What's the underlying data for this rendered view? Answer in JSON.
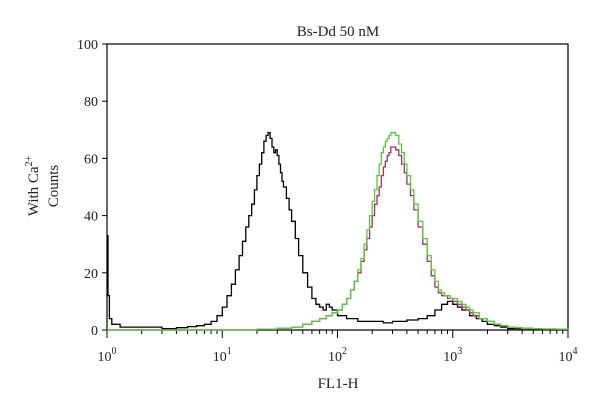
{
  "chart_data": {
    "type": "line",
    "title": "Bs-Dd 50 nM",
    "xlabel": "FL1-H",
    "ylabel_line1": "With Ca",
    "ylabel_sup": "2+",
    "ylabel_line2": "Counts",
    "x_scale": "log",
    "xlim": [
      1,
      10000
    ],
    "ylim": [
      0,
      100
    ],
    "y_ticks": [
      "0",
      "20",
      "40",
      "60",
      "80",
      "100"
    ],
    "x_ticks": [
      {
        "base": "10",
        "exp": "0",
        "value": 1
      },
      {
        "base": "10",
        "exp": "1",
        "value": 10
      },
      {
        "base": "10",
        "exp": "2",
        "value": 100
      },
      {
        "base": "10",
        "exp": "3",
        "value": 1000
      },
      {
        "base": "10",
        "exp": "4",
        "value": 10000
      }
    ],
    "grid": false,
    "series": [
      {
        "color": "#000000",
        "x": [
          1,
          1.02,
          1.05,
          1.1,
          1.3,
          2,
          3,
          4,
          5,
          6,
          7,
          8,
          9,
          10,
          11,
          12,
          13,
          14,
          15,
          16,
          17,
          18,
          19,
          20,
          21,
          22,
          23,
          24,
          25,
          26,
          27,
          28,
          29,
          30,
          31,
          32,
          33,
          34,
          36,
          38,
          40,
          43,
          46,
          50,
          55,
          60,
          65,
          70,
          75,
          80,
          85,
          90,
          100,
          120,
          150,
          200,
          250,
          300,
          350,
          400,
          500,
          600,
          700,
          800,
          900,
          1000,
          1100,
          1200,
          1400,
          1600,
          1800,
          2000,
          2300,
          2600,
          3000,
          3500,
          4000,
          5000,
          6000,
          7000,
          8000,
          9000,
          10000
        ],
        "y": [
          33,
          12,
          4,
          2,
          1,
          1,
          0.5,
          0.8,
          1.2,
          1.5,
          2,
          3,
          5,
          8,
          12,
          16,
          21,
          26,
          31,
          36,
          40,
          44,
          49,
          54,
          58,
          62,
          66,
          68,
          69,
          67,
          64,
          62,
          63,
          61,
          58,
          55,
          52,
          50,
          46,
          42,
          38,
          32,
          26,
          20,
          15,
          11,
          9,
          8,
          7,
          9,
          8,
          7,
          5,
          4,
          3,
          3,
          2.5,
          3,
          3,
          3.5,
          4,
          5,
          7,
          9,
          10,
          9,
          8,
          7,
          5,
          4,
          3,
          2,
          1.5,
          1,
          0.5,
          0.5,
          0.5,
          0.3,
          0.3,
          0.2,
          0.2,
          0.2,
          0.2
        ]
      },
      {
        "color": "#a0306a",
        "x": [
          1,
          10,
          20,
          30,
          40,
          50,
          60,
          70,
          80,
          90,
          100,
          110,
          120,
          130,
          140,
          150,
          160,
          170,
          180,
          190,
          200,
          210,
          220,
          230,
          240,
          250,
          260,
          270,
          280,
          290,
          300,
          320,
          340,
          360,
          380,
          400,
          430,
          460,
          500,
          550,
          600,
          650,
          700,
          750,
          800,
          850,
          900,
          950,
          1000,
          1100,
          1200,
          1300,
          1400,
          1500,
          1700,
          2000,
          2300,
          2600,
          3000,
          3500,
          4000,
          5000,
          6000,
          8000,
          10000
        ],
        "y": [
          0,
          0,
          0.3,
          0.6,
          1,
          2,
          3,
          4,
          5,
          6,
          7,
          9,
          11,
          14,
          17,
          20,
          24,
          28,
          32,
          36,
          40,
          44,
          47,
          50,
          54,
          57,
          59,
          61,
          62,
          64,
          64,
          63,
          61,
          58,
          55,
          51,
          47,
          42,
          36,
          30,
          24,
          19,
          15,
          13,
          12,
          12,
          11,
          11,
          10,
          9,
          8,
          7,
          6,
          5,
          4,
          3,
          2,
          1.5,
          1,
          0.8,
          0.6,
          0.4,
          0.3,
          0.2,
          0.1
        ]
      },
      {
        "color": "#55cc33",
        "x": [
          1,
          10,
          20,
          30,
          40,
          50,
          60,
          70,
          80,
          90,
          100,
          110,
          120,
          130,
          140,
          150,
          160,
          170,
          180,
          190,
          200,
          210,
          220,
          230,
          240,
          250,
          260,
          270,
          280,
          290,
          300,
          320,
          340,
          360,
          380,
          400,
          430,
          460,
          500,
          550,
          600,
          650,
          700,
          750,
          800,
          850,
          900,
          950,
          1000,
          1100,
          1200,
          1300,
          1400,
          1500,
          1700,
          2000,
          2300,
          2600,
          3000,
          3500,
          4000,
          5000,
          6000,
          8000,
          10000
        ],
        "y": [
          0,
          0,
          0.3,
          0.6,
          1,
          2,
          3,
          4,
          5,
          6,
          7,
          9,
          11,
          14,
          17,
          21,
          25,
          30,
          35,
          40,
          45,
          49,
          54,
          58,
          62,
          64,
          66,
          67,
          68,
          69,
          69,
          68,
          65,
          62,
          58,
          54,
          49,
          44,
          38,
          32,
          26,
          21,
          17,
          14,
          13,
          12,
          12,
          11,
          11,
          10,
          9,
          8,
          7,
          6,
          4,
          3,
          2,
          1.5,
          1,
          0.8,
          0.6,
          0.5,
          0.4,
          0.3,
          0.2
        ]
      }
    ]
  }
}
